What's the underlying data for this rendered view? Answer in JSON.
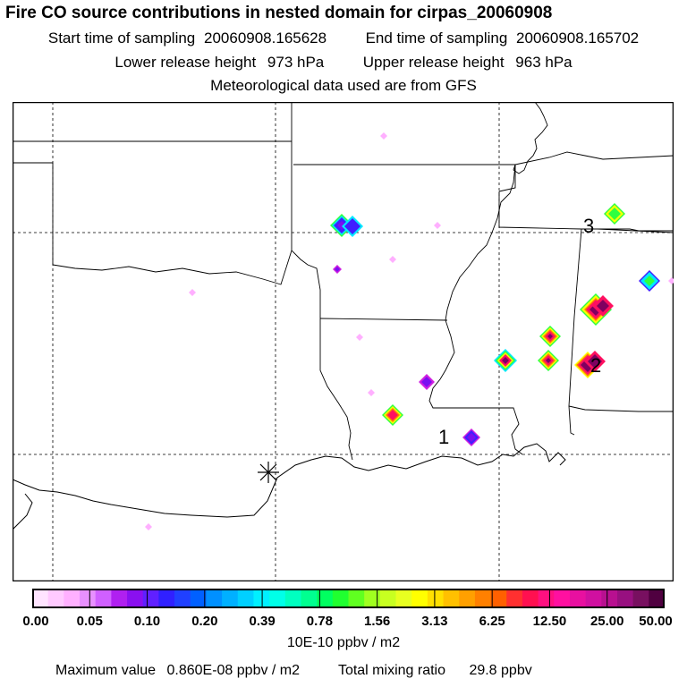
{
  "title": "Fire CO source contributions in nested domain for cirpas_20060908",
  "sampling": {
    "start_label": "Start time of sampling",
    "start_value": "20060908.165628",
    "end_label": "End time of sampling",
    "end_value": "20060908.165702"
  },
  "release": {
    "lower_label": "Lower release height",
    "lower_value": "973 hPa",
    "upper_label": "Upper release height",
    "upper_value": "963 hPa"
  },
  "met_note": "Meteorological data used are from GFS",
  "colorbar": {
    "ticks": [
      "0.00",
      "0.05",
      "0.10",
      "0.20",
      "0.39",
      "0.78",
      "1.56",
      "3.13",
      "6.25",
      "12.50",
      "25.00",
      "50.00"
    ],
    "colors": [
      "#ffe4ff",
      "#ffcaff",
      "#ffb0ff",
      "#e890ff",
      "#d060ff",
      "#b020f0",
      "#8a10f0",
      "#6020ff",
      "#3020ff",
      "#2040ff",
      "#0060ff",
      "#0090ff",
      "#00b0ff",
      "#00d0ff",
      "#00f0ff",
      "#00ffe8",
      "#00ffc0",
      "#00ff90",
      "#00ff60",
      "#20ff30",
      "#60ff20",
      "#a0ff20",
      "#c8ff20",
      "#e8ff20",
      "#ffff00",
      "#ffe000",
      "#ffc000",
      "#ffa000",
      "#ff8000",
      "#ff6000",
      "#ff3030",
      "#ff1050",
      "#ff1080",
      "#ff10a0",
      "#e810a0",
      "#d010a0",
      "#b81090",
      "#981080",
      "#781060",
      "#500040"
    ],
    "units": "10E-10 ppbv / m2"
  },
  "footer": {
    "max_label": "Maximum value",
    "max_value": "0.860E-08 ppbv / m2",
    "total_label": "Total mixing ratio",
    "total_value": "29.8 ppbv"
  },
  "map_labels": [
    "1",
    "2",
    "3"
  ],
  "hotspot_colors": {
    "pale": "#ffb0ff",
    "magenta": "#d020e0",
    "violet": "#7a10f0",
    "blue_fill": "#4020ff",
    "cyan": "#00e8ff",
    "green": "#30ff40",
    "yellow": "#ffff00",
    "orange": "#ff8000",
    "red": "#ff1060",
    "deep": "#800060"
  }
}
